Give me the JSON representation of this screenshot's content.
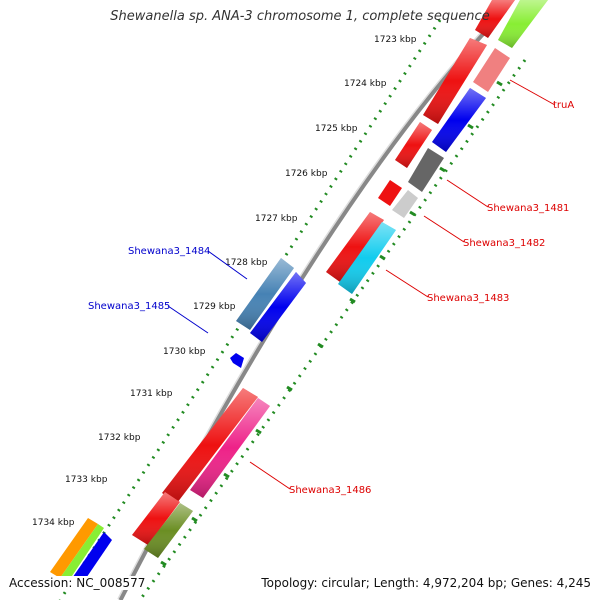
{
  "title": "Shewanella sp. ANA-3 chromosome 1, complete sequence",
  "accession": "Accession: NC_008577",
  "summary": "Topology: circular; Length: 4,972,204 bp; Genes: 4,245",
  "ticks": [
    "1723 kbp",
    "1724 kbp",
    "1725 kbp",
    "1726 kbp",
    "1727 kbp",
    "1728 kbp",
    "1729 kbp",
    "1730 kbp",
    "1731 kbp",
    "1732 kbp",
    "1733 kbp",
    "1734 kbp"
  ],
  "gene_labels": {
    "truA": "truA",
    "g1481": "Shewana3_1481",
    "g1482": "Shewana3_1482",
    "g1483": "Shewana3_1483",
    "g1484": "Shewana3_1484",
    "g1485": "Shewana3_1485",
    "g1486": "Shewana3_1486"
  },
  "colors": {
    "red": "#ee1111",
    "blue": "#0000ee",
    "steel": "#4682b4",
    "pink": "#ee2288",
    "olive": "#6b8e23",
    "cyan": "#11ccee",
    "salmon": "#f08080",
    "darkgray": "#666666",
    "lightgray": "#cccccc",
    "green": "#88ee33",
    "orange": "#ff9900",
    "label_red": "#dd0000",
    "label_blue": "#0000cc",
    "dots": "#228b22",
    "backbone": "#888888"
  }
}
